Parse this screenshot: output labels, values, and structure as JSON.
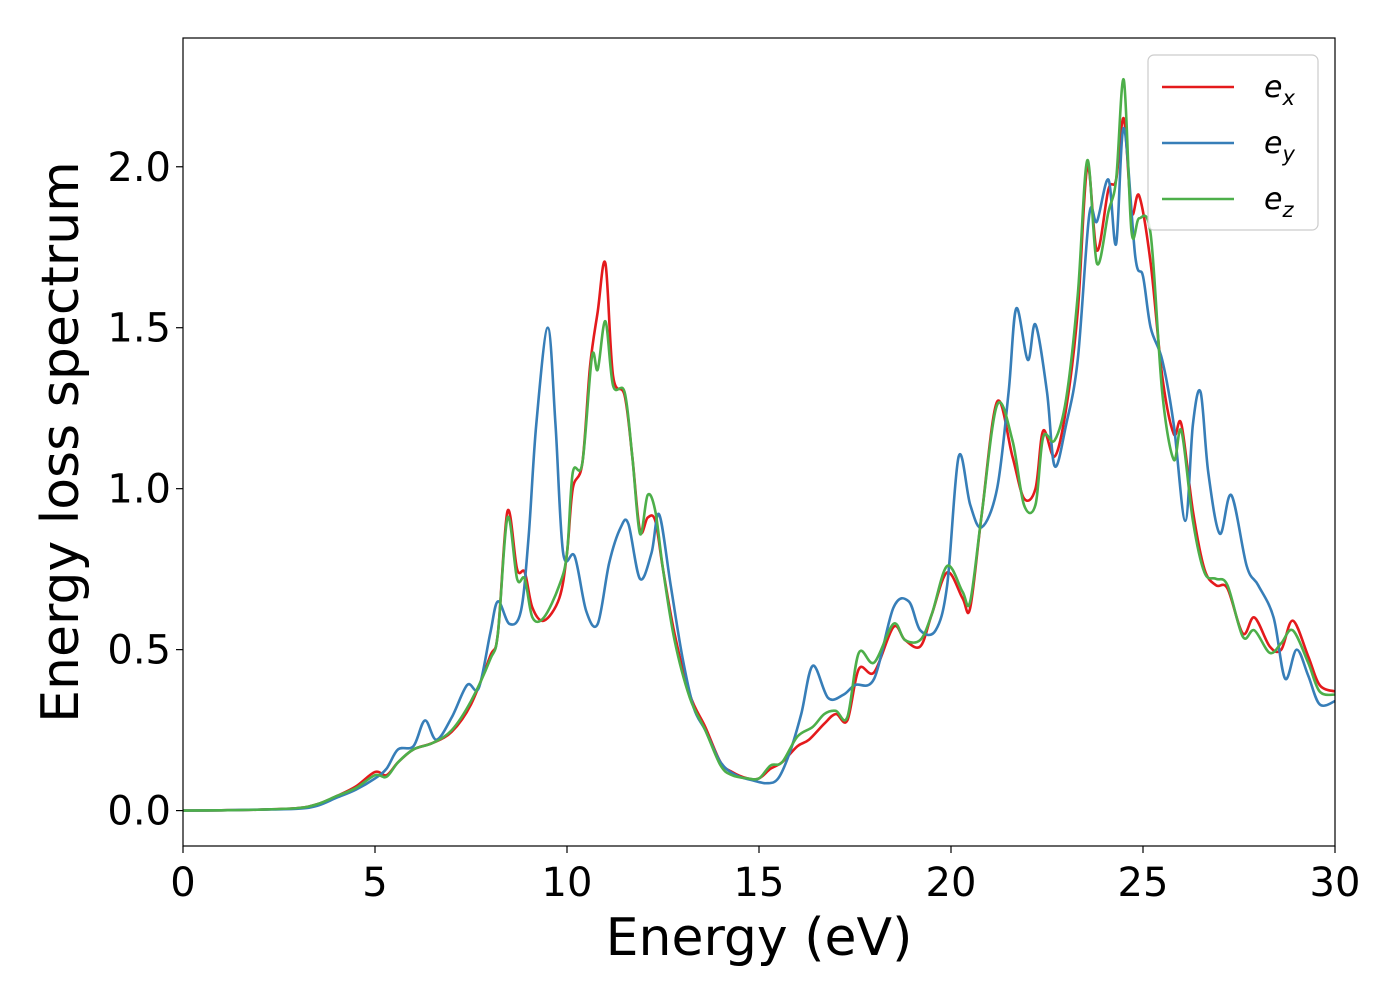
{
  "chart_data": {
    "type": "line",
    "title": "",
    "xlabel": "Energy (eV)",
    "ylabel": "Energy loss spectrum",
    "xlim": [
      0,
      30
    ],
    "ylim": [
      -0.11,
      2.4
    ],
    "xticks": [
      0,
      5,
      10,
      15,
      20,
      25,
      30
    ],
    "xtick_labels": [
      "0",
      "5",
      "10",
      "15",
      "20",
      "25",
      "30"
    ],
    "yticks": [
      0.0,
      0.5,
      1.0,
      1.5,
      2.0
    ],
    "ytick_labels": [
      "0.0",
      "0.5",
      "1.0",
      "1.5",
      "2.0"
    ],
    "grid": false,
    "legend_position": "top-right",
    "series": [
      {
        "name": "e_x",
        "label_base": "e",
        "label_sub": "x",
        "color": "#e41a1c",
        "points": [
          [
            0,
            0
          ],
          [
            1,
            0.001
          ],
          [
            2,
            0.003
          ],
          [
            3,
            0.008
          ],
          [
            3.5,
            0.02
          ],
          [
            4,
            0.045
          ],
          [
            4.5,
            0.075
          ],
          [
            5,
            0.12
          ],
          [
            5.3,
            0.11
          ],
          [
            5.6,
            0.15
          ],
          [
            6,
            0.19
          ],
          [
            6.5,
            0.21
          ],
          [
            7,
            0.245
          ],
          [
            7.5,
            0.33
          ],
          [
            8,
            0.48
          ],
          [
            8.2,
            0.55
          ],
          [
            8.45,
            0.93
          ],
          [
            8.7,
            0.75
          ],
          [
            8.9,
            0.74
          ],
          [
            9.1,
            0.63
          ],
          [
            9.4,
            0.59
          ],
          [
            9.8,
            0.66
          ],
          [
            10,
            0.8
          ],
          [
            10.15,
            1.0
          ],
          [
            10.4,
            1.08
          ],
          [
            10.6,
            1.38
          ],
          [
            10.8,
            1.55
          ],
          [
            11,
            1.7
          ],
          [
            11.2,
            1.35
          ],
          [
            11.5,
            1.29
          ],
          [
            11.7,
            1.1
          ],
          [
            11.9,
            0.87
          ],
          [
            12.1,
            0.91
          ],
          [
            12.3,
            0.9
          ],
          [
            12.5,
            0.75
          ],
          [
            12.8,
            0.55
          ],
          [
            13.2,
            0.36
          ],
          [
            13.6,
            0.26
          ],
          [
            14,
            0.15
          ],
          [
            14.3,
            0.12
          ],
          [
            14.7,
            0.1
          ],
          [
            15,
            0.1
          ],
          [
            15.3,
            0.13
          ],
          [
            15.6,
            0.15
          ],
          [
            16,
            0.2
          ],
          [
            16.3,
            0.22
          ],
          [
            16.7,
            0.27
          ],
          [
            17,
            0.3
          ],
          [
            17.3,
            0.28
          ],
          [
            17.6,
            0.44
          ],
          [
            18,
            0.43
          ],
          [
            18.5,
            0.57
          ],
          [
            18.8,
            0.53
          ],
          [
            19.2,
            0.51
          ],
          [
            19.5,
            0.61
          ],
          [
            19.9,
            0.74
          ],
          [
            20.3,
            0.66
          ],
          [
            20.5,
            0.63
          ],
          [
            20.8,
            0.92
          ],
          [
            21.2,
            1.27
          ],
          [
            21.6,
            1.1
          ],
          [
            21.9,
            0.97
          ],
          [
            22.2,
            1.0
          ],
          [
            22.4,
            1.18
          ],
          [
            22.7,
            1.1
          ],
          [
            23,
            1.25
          ],
          [
            23.3,
            1.55
          ],
          [
            23.55,
            2.0
          ],
          [
            23.8,
            1.74
          ],
          [
            24.1,
            1.93
          ],
          [
            24.3,
            1.96
          ],
          [
            24.5,
            2.15
          ],
          [
            24.7,
            1.86
          ],
          [
            24.9,
            1.91
          ],
          [
            25.2,
            1.7
          ],
          [
            25.5,
            1.35
          ],
          [
            25.8,
            1.17
          ],
          [
            26,
            1.2
          ],
          [
            26.3,
            0.93
          ],
          [
            26.6,
            0.75
          ],
          [
            26.9,
            0.7
          ],
          [
            27.2,
            0.69
          ],
          [
            27.6,
            0.55
          ],
          [
            27.9,
            0.6
          ],
          [
            28.3,
            0.51
          ],
          [
            28.6,
            0.5
          ],
          [
            28.9,
            0.59
          ],
          [
            29.3,
            0.48
          ],
          [
            29.6,
            0.39
          ],
          [
            30,
            0.37
          ]
        ]
      },
      {
        "name": "e_y",
        "label_base": "e",
        "label_sub": "y",
        "color": "#377eb8",
        "points": [
          [
            0,
            0
          ],
          [
            1,
            0.001
          ],
          [
            2,
            0.003
          ],
          [
            3,
            0.006
          ],
          [
            3.5,
            0.015
          ],
          [
            4,
            0.04
          ],
          [
            4.5,
            0.065
          ],
          [
            5,
            0.1
          ],
          [
            5.3,
            0.13
          ],
          [
            5.6,
            0.19
          ],
          [
            6,
            0.2
          ],
          [
            6.3,
            0.28
          ],
          [
            6.6,
            0.22
          ],
          [
            7,
            0.29
          ],
          [
            7.4,
            0.39
          ],
          [
            7.7,
            0.38
          ],
          [
            8,
            0.55
          ],
          [
            8.2,
            0.65
          ],
          [
            8.5,
            0.58
          ],
          [
            8.8,
            0.62
          ],
          [
            9,
            0.85
          ],
          [
            9.2,
            1.2
          ],
          [
            9.5,
            1.5
          ],
          [
            9.7,
            1.2
          ],
          [
            9.9,
            0.8
          ],
          [
            10.2,
            0.79
          ],
          [
            10.5,
            0.62
          ],
          [
            10.8,
            0.58
          ],
          [
            11.1,
            0.77
          ],
          [
            11.4,
            0.88
          ],
          [
            11.6,
            0.89
          ],
          [
            11.9,
            0.72
          ],
          [
            12.2,
            0.8
          ],
          [
            12.4,
            0.92
          ],
          [
            12.7,
            0.7
          ],
          [
            13,
            0.48
          ],
          [
            13.3,
            0.32
          ],
          [
            13.6,
            0.25
          ],
          [
            14,
            0.15
          ],
          [
            14.4,
            0.11
          ],
          [
            14.8,
            0.095
          ],
          [
            15.2,
            0.085
          ],
          [
            15.5,
            0.1
          ],
          [
            15.8,
            0.18
          ],
          [
            16.1,
            0.3
          ],
          [
            16.4,
            0.45
          ],
          [
            16.8,
            0.35
          ],
          [
            17.2,
            0.36
          ],
          [
            17.5,
            0.39
          ],
          [
            18,
            0.41
          ],
          [
            18.5,
            0.63
          ],
          [
            18.9,
            0.65
          ],
          [
            19.2,
            0.56
          ],
          [
            19.6,
            0.56
          ],
          [
            19.9,
            0.7
          ],
          [
            20.2,
            1.1
          ],
          [
            20.5,
            0.95
          ],
          [
            20.8,
            0.88
          ],
          [
            21.2,
            1.0
          ],
          [
            21.5,
            1.3
          ],
          [
            21.7,
            1.56
          ],
          [
            22,
            1.4
          ],
          [
            22.2,
            1.51
          ],
          [
            22.5,
            1.3
          ],
          [
            22.7,
            1.07
          ],
          [
            23,
            1.2
          ],
          [
            23.3,
            1.4
          ],
          [
            23.6,
            1.85
          ],
          [
            23.8,
            1.83
          ],
          [
            24.1,
            1.96
          ],
          [
            24.3,
            1.76
          ],
          [
            24.5,
            2.12
          ],
          [
            24.8,
            1.72
          ],
          [
            25,
            1.66
          ],
          [
            25.2,
            1.5
          ],
          [
            25.5,
            1.4
          ],
          [
            25.8,
            1.2
          ],
          [
            26.1,
            0.9
          ],
          [
            26.3,
            1.2
          ],
          [
            26.5,
            1.3
          ],
          [
            26.7,
            1.05
          ],
          [
            27,
            0.86
          ],
          [
            27.3,
            0.98
          ],
          [
            27.7,
            0.76
          ],
          [
            28,
            0.7
          ],
          [
            28.4,
            0.6
          ],
          [
            28.7,
            0.41
          ],
          [
            29,
            0.5
          ],
          [
            29.3,
            0.42
          ],
          [
            29.6,
            0.33
          ],
          [
            30,
            0.34
          ]
        ]
      },
      {
        "name": "e_z",
        "label_base": "e",
        "label_sub": "z",
        "color": "#4daf4a",
        "points": [
          [
            0,
            0
          ],
          [
            1,
            0.001
          ],
          [
            2,
            0.003
          ],
          [
            3,
            0.008
          ],
          [
            3.5,
            0.02
          ],
          [
            4,
            0.045
          ],
          [
            4.5,
            0.07
          ],
          [
            5,
            0.11
          ],
          [
            5.3,
            0.105
          ],
          [
            5.6,
            0.15
          ],
          [
            6,
            0.19
          ],
          [
            6.5,
            0.21
          ],
          [
            7,
            0.25
          ],
          [
            7.5,
            0.34
          ],
          [
            8,
            0.47
          ],
          [
            8.2,
            0.55
          ],
          [
            8.45,
            0.91
          ],
          [
            8.7,
            0.72
          ],
          [
            8.9,
            0.72
          ],
          [
            9.1,
            0.6
          ],
          [
            9.4,
            0.6
          ],
          [
            9.8,
            0.7
          ],
          [
            10,
            0.8
          ],
          [
            10.15,
            1.05
          ],
          [
            10.4,
            1.08
          ],
          [
            10.65,
            1.41
          ],
          [
            10.8,
            1.37
          ],
          [
            11,
            1.52
          ],
          [
            11.2,
            1.32
          ],
          [
            11.5,
            1.3
          ],
          [
            11.7,
            1.1
          ],
          [
            11.9,
            0.86
          ],
          [
            12.1,
            0.98
          ],
          [
            12.3,
            0.93
          ],
          [
            12.5,
            0.75
          ],
          [
            12.8,
            0.53
          ],
          [
            13.2,
            0.35
          ],
          [
            13.6,
            0.25
          ],
          [
            14,
            0.14
          ],
          [
            14.3,
            0.11
          ],
          [
            14.7,
            0.1
          ],
          [
            15,
            0.1
          ],
          [
            15.3,
            0.14
          ],
          [
            15.6,
            0.15
          ],
          [
            16,
            0.23
          ],
          [
            16.4,
            0.26
          ],
          [
            16.7,
            0.3
          ],
          [
            17,
            0.31
          ],
          [
            17.3,
            0.29
          ],
          [
            17.6,
            0.49
          ],
          [
            18,
            0.46
          ],
          [
            18.5,
            0.58
          ],
          [
            18.8,
            0.53
          ],
          [
            19.2,
            0.53
          ],
          [
            19.5,
            0.61
          ],
          [
            19.9,
            0.76
          ],
          [
            20.3,
            0.68
          ],
          [
            20.5,
            0.65
          ],
          [
            20.8,
            0.92
          ],
          [
            21.2,
            1.26
          ],
          [
            21.6,
            1.15
          ],
          [
            21.9,
            0.95
          ],
          [
            22.2,
            0.95
          ],
          [
            22.4,
            1.16
          ],
          [
            22.7,
            1.15
          ],
          [
            23,
            1.28
          ],
          [
            23.3,
            1.6
          ],
          [
            23.55,
            2.02
          ],
          [
            23.8,
            1.7
          ],
          [
            24.1,
            1.86
          ],
          [
            24.3,
            1.96
          ],
          [
            24.5,
            2.27
          ],
          [
            24.7,
            1.8
          ],
          [
            24.9,
            1.84
          ],
          [
            25.2,
            1.79
          ],
          [
            25.5,
            1.3
          ],
          [
            25.8,
            1.09
          ],
          [
            26,
            1.18
          ],
          [
            26.3,
            0.9
          ],
          [
            26.6,
            0.74
          ],
          [
            26.9,
            0.72
          ],
          [
            27.2,
            0.7
          ],
          [
            27.6,
            0.54
          ],
          [
            27.9,
            0.56
          ],
          [
            28.3,
            0.49
          ],
          [
            28.6,
            0.52
          ],
          [
            28.9,
            0.56
          ],
          [
            29.3,
            0.46
          ],
          [
            29.6,
            0.37
          ],
          [
            30,
            0.36
          ]
        ]
      }
    ]
  }
}
